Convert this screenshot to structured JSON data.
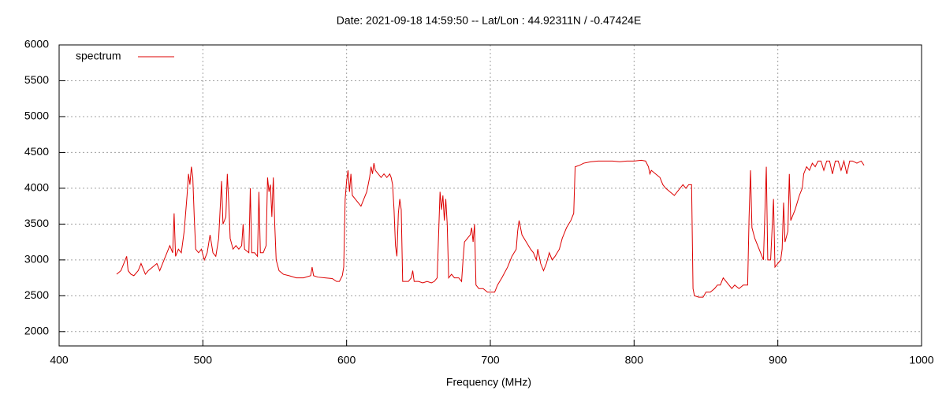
{
  "chart_data": {
    "type": "line",
    "title": "Date: 2021-09-18 14:59:50  --  Lat/Lon : 44.92311N / -0.47424E",
    "x_label": "Frequency (MHz)",
    "xlim": [
      400,
      1000
    ],
    "xticks": [
      400,
      500,
      600,
      700,
      800,
      900,
      1000
    ],
    "ylim": [
      1800,
      6000
    ],
    "yticks": [
      2000,
      2500,
      3000,
      3500,
      4000,
      4500,
      5000,
      5500,
      6000
    ],
    "grid": true,
    "legend": "top-left",
    "x": [
      440,
      443,
      445,
      447,
      448,
      450,
      452,
      455,
      457,
      460,
      462,
      465,
      468,
      470,
      473,
      475,
      477,
      479,
      480,
      481,
      483,
      485,
      487,
      489,
      490,
      491,
      492,
      493,
      494,
      495,
      497,
      499,
      501,
      503,
      505,
      507,
      509,
      511,
      513,
      514,
      516,
      517,
      518,
      519,
      521,
      523,
      525,
      527,
      528,
      529,
      532,
      533,
      534,
      536,
      538,
      539,
      540,
      542,
      544,
      545,
      546,
      547,
      548,
      549,
      550,
      551,
      553,
      556,
      560,
      565,
      570,
      575,
      576,
      577,
      580,
      585,
      590,
      593,
      595,
      597,
      598,
      599,
      600,
      601,
      602,
      603,
      604,
      606,
      608,
      610,
      612,
      614,
      616,
      617,
      618,
      619,
      620,
      622,
      624,
      626,
      628,
      630,
      631,
      632,
      633,
      634,
      635,
      636,
      637,
      638,
      639,
      641,
      643,
      645,
      646,
      647,
      650,
      653,
      656,
      659,
      661,
      663,
      664,
      665,
      666,
      667,
      668,
      669,
      670,
      671,
      673,
      675,
      678,
      680,
      681,
      682,
      684,
      686,
      687,
      688,
      689,
      690,
      692,
      695,
      698,
      700,
      703,
      705,
      708,
      712,
      715,
      718,
      719,
      720,
      722,
      725,
      728,
      730,
      732,
      733,
      735,
      737,
      739,
      741,
      743,
      745,
      748,
      750,
      753,
      756,
      758,
      759,
      762,
      765,
      770,
      775,
      780,
      785,
      790,
      795,
      800,
      805,
      808,
      810,
      811,
      812,
      815,
      818,
      820,
      822,
      825,
      828,
      830,
      832,
      834,
      836,
      838,
      840,
      841,
      842,
      845,
      848,
      850,
      853,
      856,
      858,
      860,
      862,
      864,
      866,
      868,
      870,
      873,
      876,
      879,
      880,
      881,
      882,
      884,
      886,
      888,
      890,
      892,
      893,
      895,
      897,
      898,
      900,
      902,
      903,
      904,
      905,
      907,
      908,
      909,
      912,
      915,
      917,
      918,
      920,
      922,
      924,
      926,
      928,
      930,
      932,
      934,
      936,
      938,
      940,
      942,
      944,
      946,
      948,
      950,
      952,
      955,
      958,
      960
    ],
    "series": [
      {
        "name": "spectrum",
        "color": "#dd0000",
        "values": [
          2800,
          2850,
          2950,
          3050,
          2850,
          2800,
          2780,
          2850,
          2950,
          2800,
          2850,
          2900,
          2950,
          2850,
          3000,
          3100,
          3200,
          3100,
          3650,
          3050,
          3150,
          3100,
          3400,
          3900,
          4200,
          4050,
          4300,
          4150,
          3600,
          3150,
          3100,
          3150,
          3000,
          3100,
          3350,
          3100,
          3050,
          3300,
          4100,
          3500,
          3600,
          4200,
          3800,
          3300,
          3150,
          3200,
          3150,
          3200,
          3500,
          3150,
          3100,
          4000,
          3100,
          3100,
          3050,
          3950,
          3100,
          3100,
          3200,
          4150,
          3950,
          4050,
          3600,
          4150,
          3500,
          3000,
          2850,
          2800,
          2780,
          2750,
          2750,
          2780,
          2900,
          2780,
          2760,
          2750,
          2740,
          2700,
          2700,
          2780,
          2900,
          3850,
          4100,
          4250,
          3950,
          4200,
          3900,
          3850,
          3800,
          3750,
          3850,
          3950,
          4150,
          4300,
          4200,
          4350,
          4250,
          4200,
          4150,
          4200,
          4150,
          4200,
          4150,
          4050,
          3700,
          3200,
          3050,
          3650,
          3850,
          3700,
          2700,
          2700,
          2700,
          2750,
          2850,
          2700,
          2700,
          2680,
          2700,
          2680,
          2700,
          2750,
          3350,
          3950,
          3700,
          3900,
          3550,
          3850,
          3500,
          2750,
          2800,
          2750,
          2750,
          2700,
          3000,
          3250,
          3300,
          3350,
          3450,
          3250,
          3500,
          2650,
          2600,
          2600,
          2550,
          2550,
          2550,
          2650,
          2750,
          2900,
          3050,
          3150,
          3400,
          3550,
          3350,
          3250,
          3150,
          3100,
          3000,
          3150,
          2950,
          2850,
          2950,
          3100,
          3000,
          3050,
          3150,
          3300,
          3450,
          3550,
          3650,
          4300,
          4320,
          4350,
          4370,
          4380,
          4380,
          4380,
          4370,
          4380,
          4380,
          4390,
          4380,
          4300,
          4200,
          4250,
          4200,
          4150,
          4050,
          4000,
          3950,
          3900,
          3950,
          4000,
          4050,
          4000,
          4050,
          4050,
          2600,
          2500,
          2480,
          2480,
          2550,
          2550,
          2600,
          2650,
          2650,
          2750,
          2700,
          2650,
          2600,
          2650,
          2600,
          2650,
          2650,
          3600,
          4250,
          3450,
          3300,
          3200,
          3100,
          3000,
          4300,
          3000,
          3000,
          3850,
          2900,
          2950,
          3000,
          3150,
          3800,
          3250,
          3400,
          4200,
          3550,
          3700,
          3900,
          4000,
          4200,
          4300,
          4250,
          4350,
          4300,
          4380,
          4380,
          4250,
          4380,
          4380,
          4200,
          4380,
          4380,
          4250,
          4380,
          4200,
          4380,
          4380,
          4350,
          4380,
          4320
        ]
      }
    ]
  }
}
